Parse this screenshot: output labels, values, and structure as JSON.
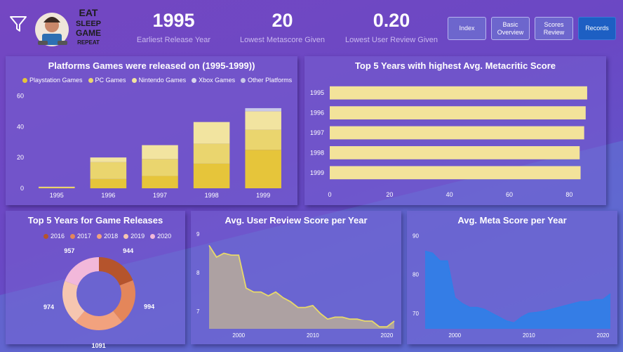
{
  "kpis": [
    {
      "value": "1995",
      "label": "Earliest Release Year"
    },
    {
      "value": "20",
      "label": "Lowest Metascore Given"
    },
    {
      "value": "0.20",
      "label": "Lowest User Review Given"
    }
  ],
  "nav": [
    {
      "label": "Index"
    },
    {
      "label": "Basic Overview"
    },
    {
      "label": "Scores Review"
    },
    {
      "label": "Records"
    }
  ],
  "logo": {
    "text": [
      "EAT",
      "SLEEP",
      "GAME",
      "REPEAT"
    ]
  },
  "colors": {
    "accent": "#1d5fc3",
    "bar_yellow": "#f3e39a",
    "line_yellow": "#e8d96a",
    "meta_blue": "#2f7fe8"
  },
  "chart_data": [
    {
      "type": "bar",
      "stacked": true,
      "title": "Platforms Games were released on (1995-1999))",
      "categories": [
        "1995",
        "1996",
        "1997",
        "1998",
        "1999"
      ],
      "series": [
        {
          "name": "Playstation Games",
          "color": "#e6c53a",
          "values": [
            0.5,
            6,
            8,
            16,
            25
          ]
        },
        {
          "name": "PC Games",
          "color": "#ead56e",
          "values": [
            0.3,
            11,
            11,
            13,
            13
          ]
        },
        {
          "name": "Nintendo Games",
          "color": "#f2e4a0",
          "values": [
            0.2,
            3,
            9,
            14,
            12
          ]
        },
        {
          "name": "Xbox Games",
          "color": "#d9d6ec",
          "values": [
            0,
            0,
            0,
            0,
            0
          ]
        },
        {
          "name": "Other Platforms",
          "color": "#c9c8e8",
          "values": [
            0,
            0,
            0,
            0,
            2
          ]
        }
      ],
      "yticks": [
        0,
        20,
        40,
        60
      ],
      "ylim": [
        0,
        62
      ],
      "legend": "top"
    },
    {
      "type": "bar",
      "orientation": "horizontal",
      "title": "Top 5 Years with highest Avg. Metacritic Score",
      "categories": [
        "1995",
        "1996",
        "1997",
        "1998",
        "1999"
      ],
      "values": [
        86,
        85.5,
        85,
        83.5,
        83.8
      ],
      "xticks": [
        0,
        20,
        40,
        60,
        80
      ],
      "xlim": [
        0,
        90
      ]
    },
    {
      "type": "pie",
      "donut": true,
      "title": "Top 5 Years for Game Releases",
      "labels": [
        "2016",
        "2017",
        "2018",
        "2019",
        "2020"
      ],
      "values": [
        944,
        994,
        1091,
        974,
        957
      ],
      "colors": [
        "#b5542c",
        "#e4865a",
        "#f2a27e",
        "#f6c6b0",
        "#f2b8da"
      ],
      "legend": "top"
    },
    {
      "type": "area",
      "title": "Avg. User Review Score per Year",
      "x": [
        1996,
        1997,
        1998,
        1999,
        2000,
        2001,
        2002,
        2003,
        2004,
        2005,
        2006,
        2007,
        2008,
        2009,
        2010,
        2011,
        2012,
        2013,
        2014,
        2015,
        2016,
        2017,
        2018,
        2019,
        2020,
        2021
      ],
      "y": [
        8.7,
        8.4,
        8.5,
        8.45,
        8.45,
        7.6,
        7.5,
        7.5,
        7.4,
        7.5,
        7.35,
        7.25,
        7.1,
        7.1,
        7.15,
        6.95,
        6.8,
        6.85,
        6.85,
        6.8,
        6.8,
        6.75,
        6.75,
        6.6,
        6.6,
        6.75
      ],
      "yticks": [
        7,
        8,
        9
      ],
      "xticks": [
        2000,
        2010,
        2020
      ],
      "ylim": [
        6.55,
        9.05
      ]
    },
    {
      "type": "area",
      "title": "Avg. Meta Score per Year",
      "x": [
        1996,
        1997,
        1998,
        1999,
        2000,
        2001,
        2002,
        2003,
        2004,
        2005,
        2006,
        2007,
        2008,
        2009,
        2010,
        2011,
        2012,
        2013,
        2014,
        2015,
        2016,
        2017,
        2018,
        2019,
        2020,
        2021
      ],
      "y": [
        86,
        85.5,
        83.5,
        83.5,
        74,
        72.5,
        71.5,
        71.5,
        71,
        70,
        69,
        68,
        67.5,
        69,
        70,
        70.2,
        70.5,
        71,
        71.5,
        72,
        72.5,
        73,
        73,
        73.5,
        73.5,
        75
      ],
      "yticks": [
        70,
        80,
        90
      ],
      "xticks": [
        2000,
        2010,
        2020
      ],
      "ylim": [
        66,
        91
      ]
    }
  ]
}
